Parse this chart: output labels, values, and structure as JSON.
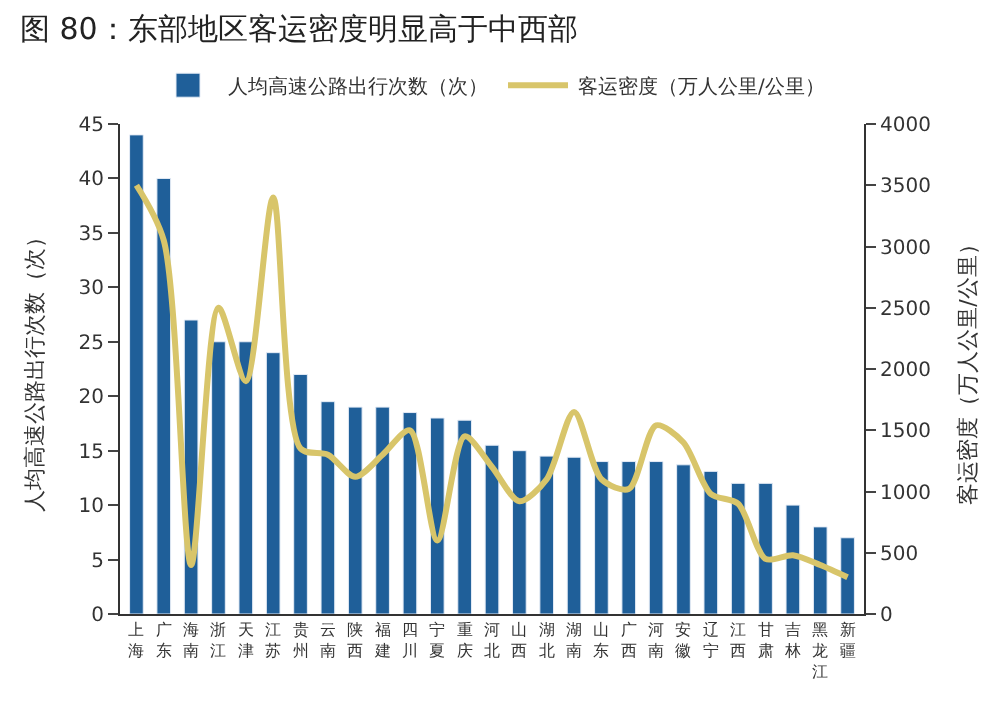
{
  "chart_data": {
    "type": "bar",
    "title": "图 80：东部地区客运密度明显高于中西部",
    "categories": [
      "上海",
      "广东",
      "海南",
      "浙江",
      "天津",
      "江苏",
      "贵州",
      "云南",
      "陕西",
      "福建",
      "四川",
      "宁夏",
      "重庆",
      "河北",
      "山西",
      "湖北",
      "湖南",
      "山东",
      "广西",
      "河南",
      "安徽",
      "辽宁",
      "江西",
      "甘肃",
      "吉林",
      "黑龙江",
      "新疆"
    ],
    "series": [
      {
        "name": "人均高速公路出行次数（次）",
        "color": "#1f5f99",
        "values": [
          44,
          40,
          27,
          25,
          25,
          24,
          22,
          19.5,
          19,
          19,
          18.5,
          18,
          17.8,
          15.5,
          15,
          14.5,
          14.4,
          14,
          14,
          14,
          13.7,
          13.1,
          12,
          12,
          10,
          8,
          7
        ]
      },
      {
        "name": "客运密度（万人公里/公里）",
        "type": "line",
        "axis": "y2",
        "color": "#d8c56a",
        "line_style": "solid",
        "marker": "none",
        "values": [
          3500,
          3050,
          400,
          2500,
          1900,
          3400,
          1350,
          1300,
          1120,
          1300,
          1500,
          600,
          1450,
          1200,
          920,
          1100,
          1650,
          1100,
          1020,
          1540,
          1400,
          980,
          900,
          450,
          480,
          400,
          300
        ]
      }
    ],
    "ylabel": "人均高速公路出行次数（次）",
    "y2label": "客运密度（万人公里/公里）",
    "ylim": [
      0,
      45
    ],
    "yticks": [
      0,
      5,
      10,
      15,
      20,
      25,
      30,
      35,
      40,
      45
    ],
    "y2lim": [
      0,
      4000
    ],
    "y2ticks": [
      0,
      500,
      1000,
      1500,
      2000,
      2500,
      3000,
      3500,
      4000
    ],
    "legend": "top"
  }
}
